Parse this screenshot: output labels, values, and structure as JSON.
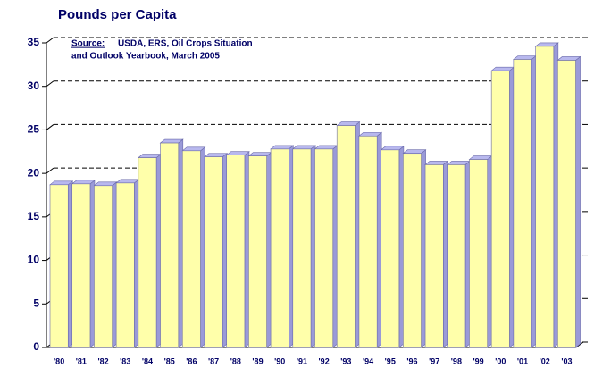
{
  "chart_data": {
    "type": "bar3d",
    "title": "Pounds per Capita",
    "source_label": "Source:",
    "source_lines": [
      "USDA, ERS, Oil Crops Situation",
      "and Outlook Yearbook, March 2005"
    ],
    "categories": [
      "'80",
      "'81",
      "'82",
      "'83",
      "'84",
      "'85",
      "'86",
      "'87",
      "'88",
      "'89",
      "'90",
      "'91",
      "'92",
      "'93",
      "'94",
      "'95",
      "'96",
      "'97",
      "'98",
      "'99",
      "'00",
      "'01",
      "'02",
      "'03"
    ],
    "values": [
      18.7,
      18.8,
      18.6,
      18.9,
      21.8,
      23.5,
      22.6,
      21.9,
      22.1,
      22.0,
      22.8,
      22.8,
      22.8,
      25.5,
      24.3,
      22.7,
      22.3,
      21.0,
      21.0,
      21.6,
      31.8,
      33.1,
      34.6,
      33.0
    ],
    "color": "#ffffaa",
    "ylim": [
      0,
      35
    ],
    "yticks": [
      0,
      5,
      10,
      15,
      20,
      25,
      30,
      35
    ],
    "grid": true
  }
}
